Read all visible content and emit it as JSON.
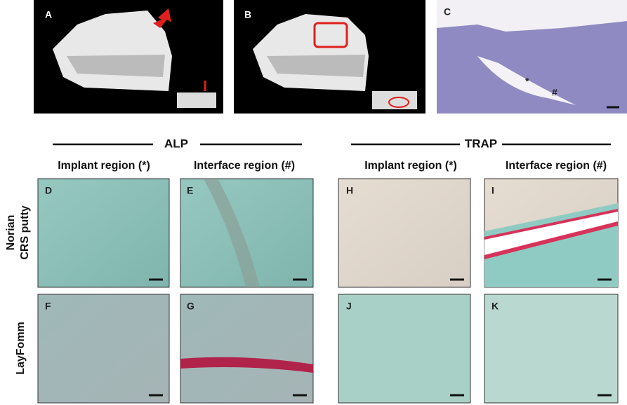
{
  "top_panels": [
    {
      "label": "A"
    },
    {
      "label": "B"
    },
    {
      "label": "C",
      "markers": [
        "*",
        "#"
      ]
    }
  ],
  "sections": [
    {
      "title": "ALP",
      "columns": [
        "Implant region (*)",
        "Interface region (#)"
      ]
    },
    {
      "title": "TRAP",
      "columns": [
        "Implant region (*)",
        "Interface region (#)"
      ]
    }
  ],
  "rows": [
    {
      "label": [
        "Norian",
        "CRS putty"
      ],
      "panels": [
        "D",
        "E",
        "H",
        "I"
      ]
    },
    {
      "label": [
        "LayFomm"
      ],
      "panels": [
        "F",
        "G",
        "J",
        "K"
      ]
    }
  ]
}
